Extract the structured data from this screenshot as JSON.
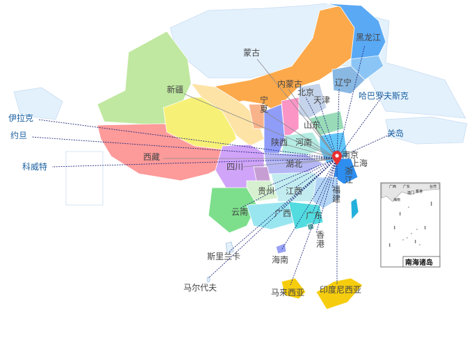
{
  "map": {
    "origin": "南京",
    "colors": {
      "foreign_label": "#1a5fa0",
      "label": "#444444",
      "line_foreign": "#1f2a7a",
      "line_domestic": "#8a8a8a",
      "marker": "#e8302f",
      "neighbor_land": "#e3f1fd"
    },
    "regions": {
      "neimenggu": "#fca94b",
      "heilongjiang": "#5aa9f5",
      "jilin": "#8bc5f5",
      "liaoning": "#89b8e3",
      "xinjiang": "#c0e8a0",
      "xizang": "#fd9a9a",
      "qinghai": "#f7f077",
      "gansu": "#fde3a6",
      "ningxia": "#f9b38a",
      "sichuan": "#d0a4f8",
      "shaanxi": "#8f9cf8",
      "shanxi": "#fb95c6",
      "hebei": "#c5d4ea",
      "shandong": "#99dbb8",
      "henan": "#b4ebe3",
      "jiangsu": "#63c6f8",
      "hubei": "#b5b7f5",
      "chongqing": "#c79ed4",
      "zhejiang": "#2d8ef0",
      "jiangxi": "#c3ecf0",
      "fujian": "#b3d5f5",
      "guizhou": "#d6f0d0",
      "yunnan": "#7ddf8c",
      "guangxi": "#99e6f0",
      "guangdong": "#53dcdf",
      "taiwan": "#22b0dc",
      "hainan": "#9aa3f6",
      "hongkong": "#5fa6a6",
      "malaysia": "#f6cd0e",
      "indonesia": "#f6cd0e"
    },
    "labels": [
      {
        "id": "mongolia",
        "text": "蒙古",
        "foreign": false
      },
      {
        "id": "heilongjiang",
        "text": "黑龙江",
        "foreign": false
      },
      {
        "id": "xinjiang",
        "text": "新疆",
        "foreign": false
      },
      {
        "id": "neimenggu",
        "text": "内蒙古",
        "foreign": false
      },
      {
        "id": "beijing",
        "text": "北京",
        "foreign": false
      },
      {
        "id": "tianjin",
        "text": "天津",
        "foreign": false
      },
      {
        "id": "liaoning",
        "text": "辽宁",
        "foreign": false
      },
      {
        "id": "khabarovsk",
        "text": "哈巴罗夫斯克",
        "foreign": true
      },
      {
        "id": "ningxia",
        "text": "宁夏",
        "foreign": false,
        "vertical": true
      },
      {
        "id": "iraq",
        "text": "伊拉克",
        "foreign": true
      },
      {
        "id": "shandong",
        "text": "山东",
        "foreign": false
      },
      {
        "id": "guam",
        "text": "关岛",
        "foreign": true
      },
      {
        "id": "jordan",
        "text": "约旦",
        "foreign": true
      },
      {
        "id": "shaanxi",
        "text": "陕西",
        "foreign": false
      },
      {
        "id": "henan",
        "text": "河南",
        "foreign": false
      },
      {
        "id": "xizang",
        "text": "西藏",
        "foreign": false
      },
      {
        "id": "nanjing",
        "text": "南京",
        "foreign": false
      },
      {
        "id": "shanghai",
        "text": "上海",
        "foreign": false
      },
      {
        "id": "sichuan",
        "text": "四川",
        "foreign": false
      },
      {
        "id": "hubei",
        "text": "湖北",
        "foreign": false
      },
      {
        "id": "zhejiang",
        "text": "浙江",
        "foreign": false,
        "vertical": true
      },
      {
        "id": "kuwait",
        "text": "科威特",
        "foreign": true
      },
      {
        "id": "guizhou",
        "text": "贵州",
        "foreign": false
      },
      {
        "id": "jiangxi",
        "text": "江西",
        "foreign": false
      },
      {
        "id": "fujian",
        "text": "福建",
        "foreign": false,
        "vertical": true
      },
      {
        "id": "yunnan",
        "text": "云南",
        "foreign": false
      },
      {
        "id": "guangxi",
        "text": "广西",
        "foreign": false
      },
      {
        "id": "guangdong",
        "text": "广东",
        "foreign": false
      },
      {
        "id": "hongkong",
        "text": "香港",
        "foreign": false,
        "vertical": true
      },
      {
        "id": "srilanka",
        "text": "斯里兰卡",
        "foreign": false
      },
      {
        "id": "hainan",
        "text": "海南",
        "foreign": false
      },
      {
        "id": "maldives",
        "text": "马尔代夫",
        "foreign": false
      },
      {
        "id": "malaysia",
        "text": "马来西亚",
        "foreign": false
      },
      {
        "id": "indonesia",
        "text": "印度尼西亚",
        "foreign": false
      }
    ],
    "inset": {
      "title": "南海诸岛",
      "mini_labels": [
        "广西",
        "广东",
        "澳门",
        "香港",
        "台湾",
        "海南"
      ]
    }
  }
}
